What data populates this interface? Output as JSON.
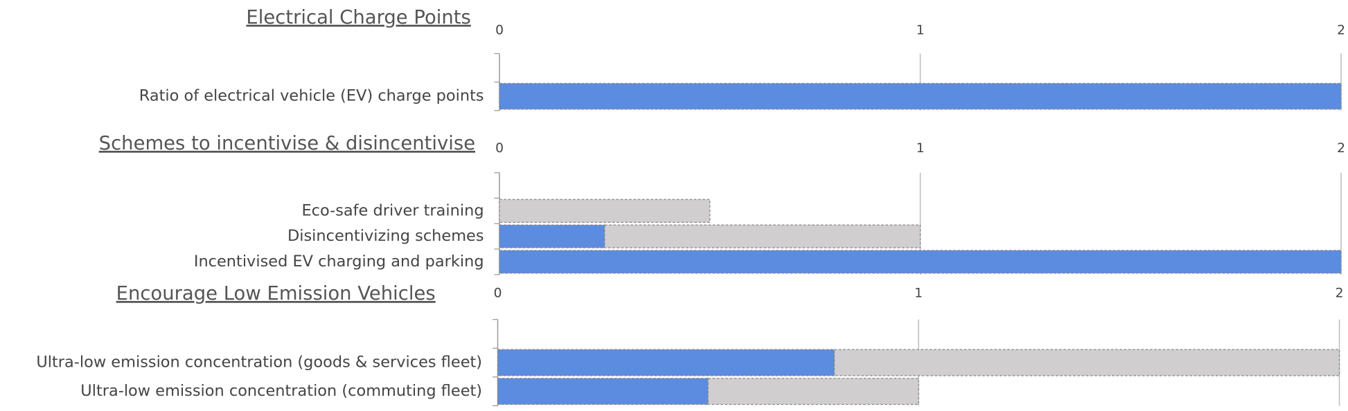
{
  "chart_data": [
    {
      "type": "bar",
      "orientation": "horizontal",
      "stacked": true,
      "title": "Electrical Charge Points",
      "categories": [
        "Ratio of electrical vehicle (EV) charge points"
      ],
      "series": [
        {
          "color": "#5b8ce0",
          "values": [
            2
          ]
        },
        {
          "color": "#d0cece",
          "values": [
            0
          ]
        }
      ],
      "xlim": [
        0,
        2
      ],
      "xticks": [
        0,
        1,
        2
      ],
      "grid": true
    },
    {
      "type": "bar",
      "orientation": "horizontal",
      "stacked": true,
      "title": "Schemes to incentivise & disincentivise",
      "categories": [
        "Eco-safe driver training",
        "Disincentivizing schemes",
        "Incentivised EV charging and parking"
      ],
      "series": [
        {
          "color": "#5b8ce0",
          "values": [
            0,
            0.25,
            2
          ]
        },
        {
          "color": "#d0cece",
          "values": [
            0.5,
            0.75,
            0
          ]
        }
      ],
      "xlim": [
        0,
        2
      ],
      "xticks": [
        0,
        1,
        2
      ],
      "grid": true
    },
    {
      "type": "bar",
      "orientation": "horizontal",
      "stacked": true,
      "title": "Encourage Low Emission Vehicles",
      "categories": [
        "Ultra-low emission concentration (goods & services fleet)",
        "Ultra-low emission concentration (commuting fleet)"
      ],
      "series": [
        {
          "color": "#5b8ce0",
          "values": [
            0.8,
            0.5
          ]
        },
        {
          "color": "#d0cece",
          "values": [
            1.2,
            0.5
          ]
        }
      ],
      "xlim": [
        0,
        2
      ],
      "xticks": [
        0,
        1,
        2
      ],
      "grid": true
    }
  ]
}
